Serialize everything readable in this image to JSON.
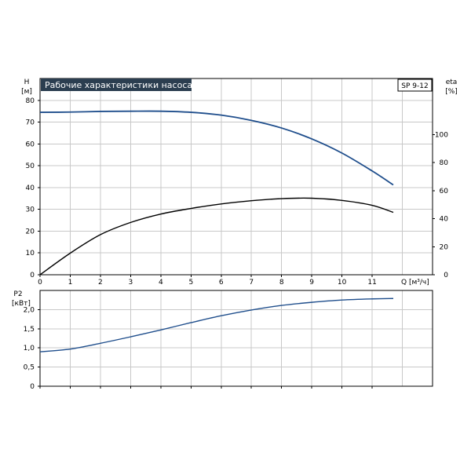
{
  "chart_data": [
    {
      "type": "line",
      "title": "Рабочие характеристики насоса",
      "model_label": "SP 9-12",
      "ylabel_left": "H",
      "ylabel_left_unit": "[м]",
      "ylabel_right": "eta",
      "ylabel_right_unit": "[%]",
      "xlabel": "Q [м³/ч]",
      "xlim": [
        0,
        13
      ],
      "ylim_left": [
        0,
        90
      ],
      "ylim_right": [
        0,
        140
      ],
      "xticks": [
        "0",
        "1",
        "2",
        "3",
        "4",
        "5",
        "6",
        "7",
        "8",
        "9",
        "10",
        "11"
      ],
      "yticks_left": [
        "0",
        "10",
        "20",
        "30",
        "40",
        "50",
        "60",
        "70",
        "80"
      ],
      "yticks_right": [
        "0",
        "20",
        "40",
        "60",
        "80",
        "100"
      ],
      "grid": true,
      "series": [
        {
          "axis": "left",
          "color": "#1f4e8c",
          "x": [
            0,
            1,
            2,
            3,
            4,
            5,
            6,
            7,
            8,
            9,
            10,
            11,
            11.7
          ],
          "y": [
            74.5,
            74.6,
            74.9,
            75.0,
            75.0,
            74.5,
            73.2,
            70.8,
            67.3,
            62.3,
            55.8,
            47.6,
            41.2
          ]
        },
        {
          "axis": "right",
          "color": "#000000",
          "x": [
            0,
            1,
            2,
            3,
            4,
            5,
            6,
            7,
            8,
            9,
            10,
            11,
            11.7
          ],
          "y": [
            0,
            15.4,
            28.6,
            37.3,
            43.3,
            47.3,
            50.5,
            52.8,
            54.3,
            54.6,
            53.0,
            49.5,
            44.5
          ]
        }
      ]
    },
    {
      "type": "line",
      "ylabel": "P2",
      "ylabel_unit": "[кВт]",
      "xlim": [
        0,
        13
      ],
      "ylim": [
        0,
        2.5
      ],
      "yticks": [
        "0",
        "0,5",
        "1,0",
        "1,5",
        "2,0"
      ],
      "grid": true,
      "series": [
        {
          "color": "#1f4e8c",
          "x": [
            0,
            1,
            2,
            3,
            4,
            5,
            6,
            7,
            8,
            9,
            10,
            11,
            11.7
          ],
          "y": [
            0.9,
            0.97,
            1.12,
            1.29,
            1.47,
            1.66,
            1.84,
            1.99,
            2.11,
            2.19,
            2.25,
            2.28,
            2.29
          ]
        }
      ]
    }
  ]
}
